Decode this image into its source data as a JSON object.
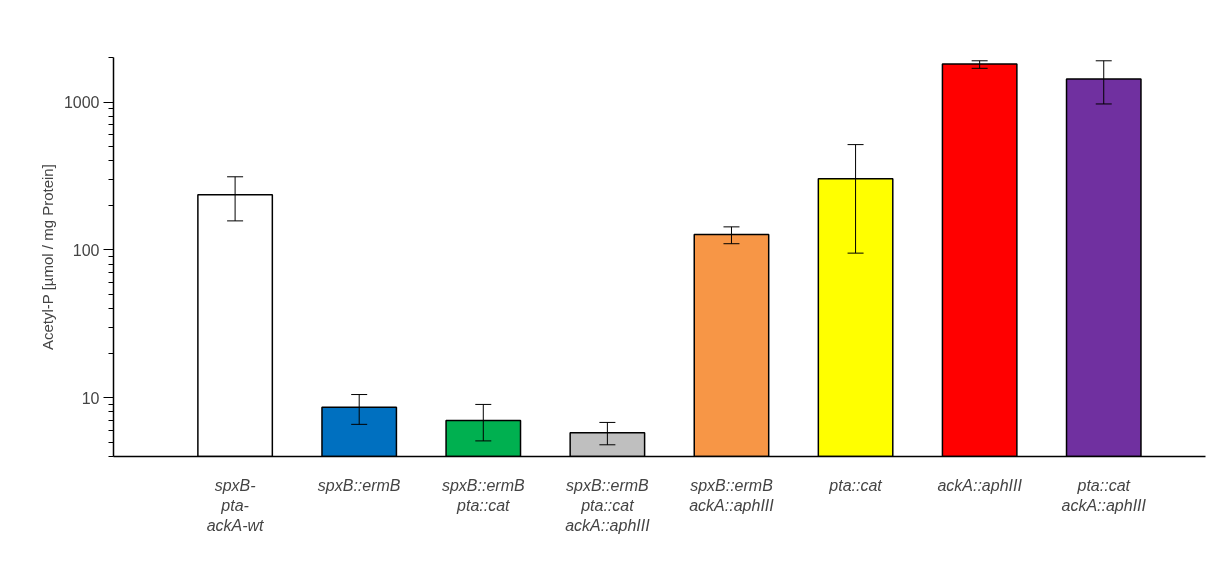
{
  "chart_data": {
    "type": "bar",
    "ylabel": "Acetyl-P [µmol / mg Protein]",
    "categories": [
      "spxB-\npta-\nackA-wt",
      "spxB::ermB",
      "spxB::ermB\npta::cat",
      "spxB::ermB\npta::cat\nackA::aphIII",
      "spxB::ermB\nackA::aphIII",
      "pta::cat",
      "ackA::aphIII",
      "pta::cat\nackA::aphIII"
    ],
    "values": [
      236,
      8.6,
      7.0,
      5.8,
      127,
      303,
      1810,
      1430
    ],
    "colors": [
      "#ffffff",
      "#0070c0",
      "#00b050",
      "#bfbfbf",
      "#f79646",
      "#ffff00",
      "#ff0000",
      "#7030a0"
    ],
    "errors": [
      [
        157,
        312
      ],
      [
        6.6,
        10.5
      ],
      [
        5.1,
        9.0
      ],
      [
        4.8,
        6.8
      ],
      [
        110,
        143
      ],
      [
        95,
        515
      ],
      [
        1690,
        1900
      ],
      [
        970,
        1900
      ]
    ],
    "log": true,
    "ylim": [
      4,
      2000
    ],
    "yticks": [
      10,
      100,
      1000
    ],
    "grid": false
  }
}
